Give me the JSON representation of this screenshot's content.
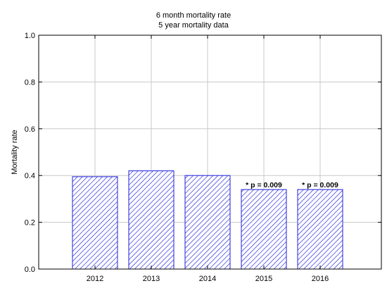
{
  "chart_data": {
    "type": "bar",
    "title": "6 month mortality rate",
    "subtitle": "5 year mortality data",
    "xlabel": "",
    "ylabel": "Mortality rate",
    "categories": [
      "2012",
      "2013",
      "2014",
      "2015",
      "2016"
    ],
    "values": [
      0.395,
      0.42,
      0.4,
      0.34,
      0.34
    ],
    "ylim": [
      0.0,
      1.0
    ],
    "yticks": [
      "0.0",
      "0.2",
      "0.4",
      "0.6",
      "0.8",
      "1.0"
    ],
    "annotations": [
      {
        "category": "2015",
        "text": "* p = 0.009"
      },
      {
        "category": "2016",
        "text": "* p = 0.009"
      }
    ],
    "grid": true,
    "bar_fill": "hatched",
    "bar_color": "#1f1fdc",
    "grid_color": "#c8c8c8"
  }
}
